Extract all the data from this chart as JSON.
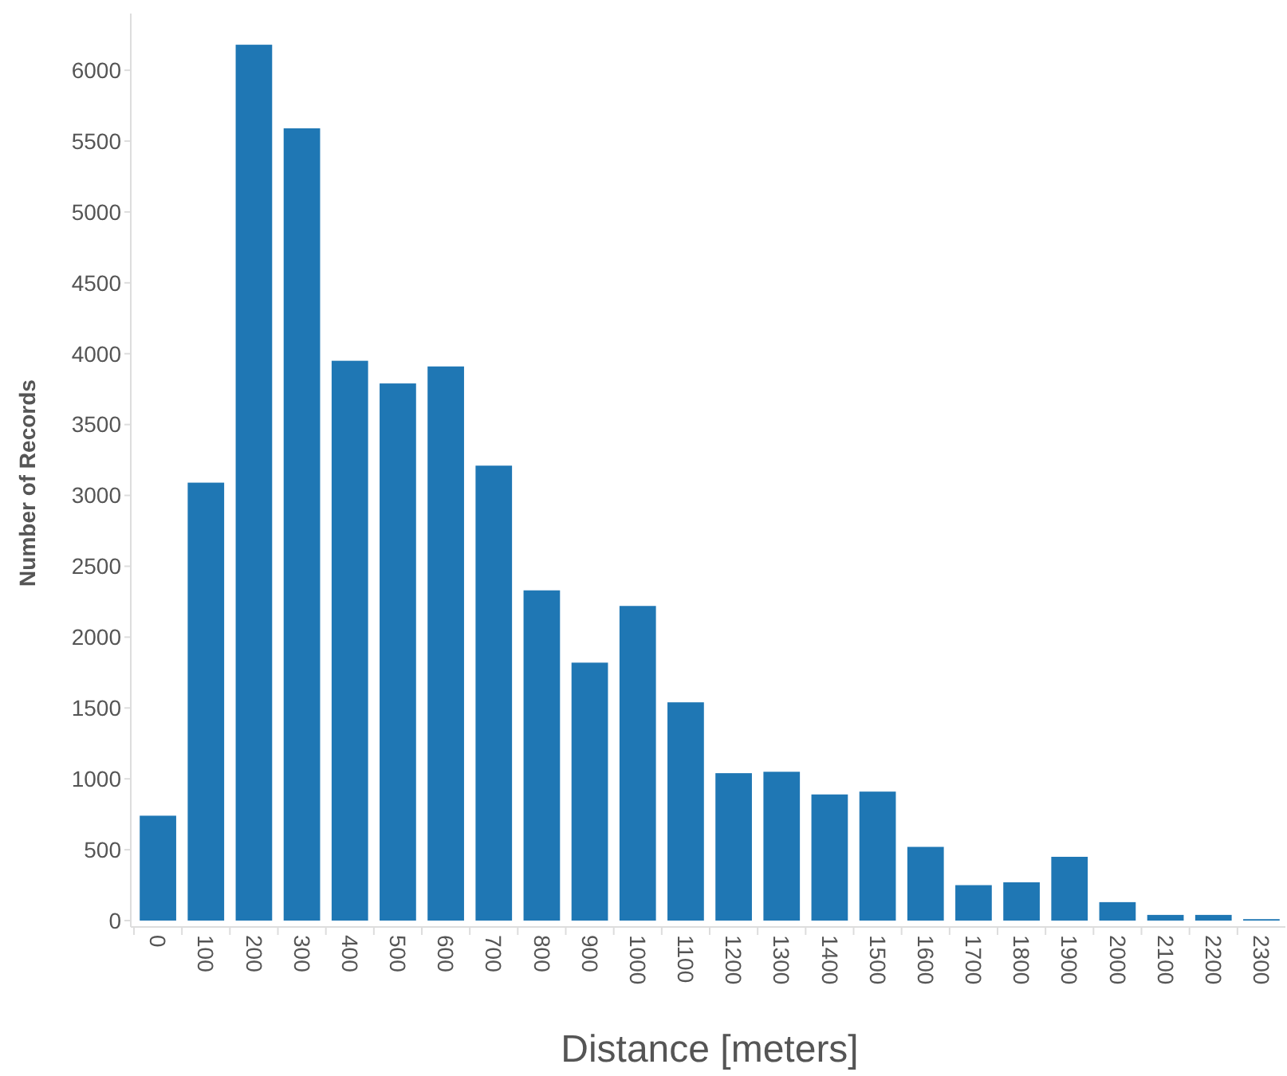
{
  "chart_data": {
    "type": "bar",
    "xlabel": "Distance [meters]",
    "ylabel": "Number of Records",
    "categories": [
      "0",
      "100",
      "200",
      "300",
      "400",
      "500",
      "600",
      "700",
      "800",
      "900",
      "1000",
      "1100",
      "1200",
      "1300",
      "1400",
      "1500",
      "1600",
      "1700",
      "1800",
      "1900",
      "2000",
      "2100",
      "2200",
      "2300"
    ],
    "values": [
      740,
      3090,
      6180,
      5590,
      3950,
      3790,
      3910,
      3210,
      2330,
      1820,
      2220,
      1540,
      1040,
      1050,
      890,
      910,
      520,
      250,
      270,
      450,
      130,
      40,
      40,
      10
    ],
    "color": "#1f77b4",
    "ylim": [
      0,
      6400
    ],
    "yticks": [
      0,
      500,
      1000,
      1500,
      2000,
      2500,
      3000,
      3500,
      4000,
      4500,
      5000,
      5500,
      6000
    ],
    "grid": false
  }
}
